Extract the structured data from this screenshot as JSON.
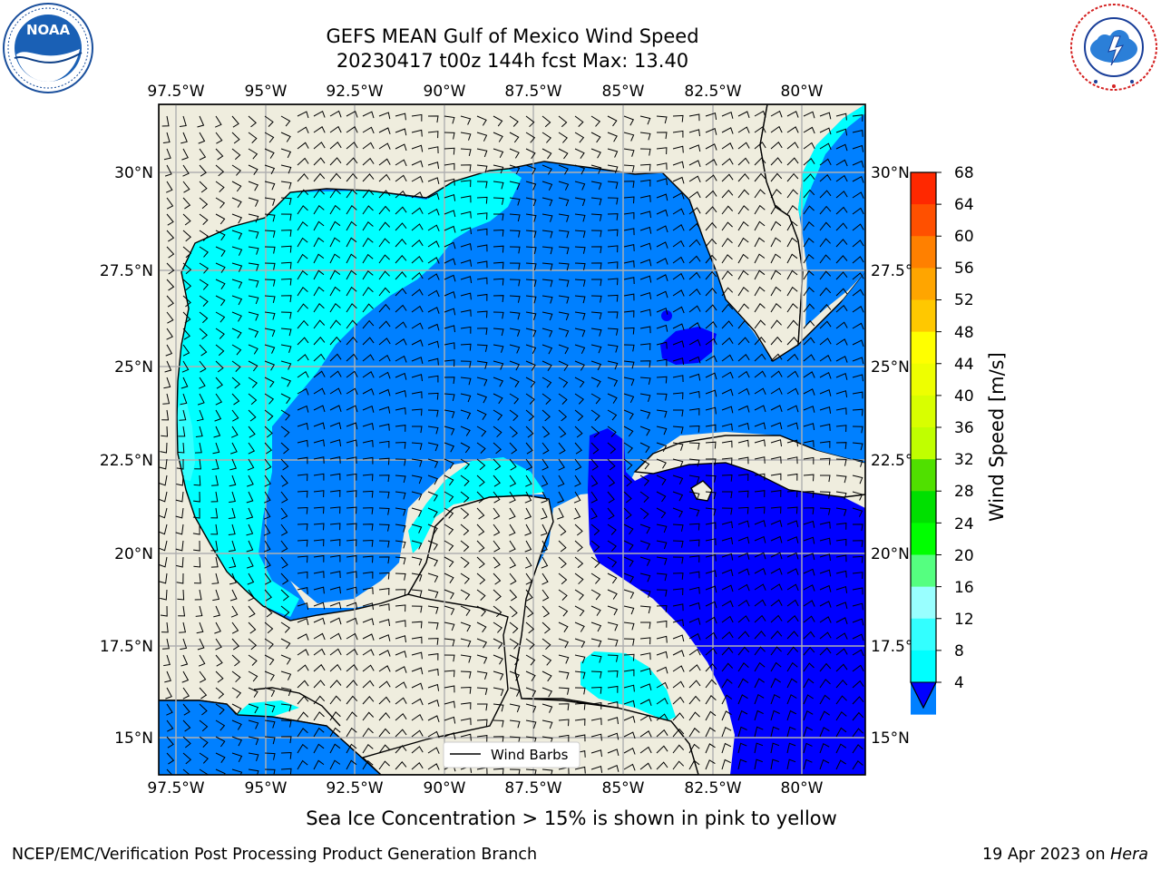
{
  "header": {
    "title_line1": "GEFS MEAN Gulf of Mexico Wind Speed",
    "title_line2": "20230417 t00z 144h fcst   Max: 13.40"
  },
  "logos": {
    "left": {
      "name": "noaa-logo",
      "text": "NOAA",
      "ring_text": "NATIONAL OCEANIC AND ATMOSPHERIC ADMINISTRATION · U.S. DEPARTMENT OF COMMERCE"
    },
    "right": {
      "name": "nws-logo",
      "ring_text": "NATIONAL WEATHER SERVICE"
    }
  },
  "map": {
    "lon_labels": [
      "97.5°W",
      "95°W",
      "92.5°W",
      "90°W",
      "87.5°W",
      "85°W",
      "82.5°W",
      "80°W"
    ],
    "lat_labels": [
      "30°N",
      "27.5°N",
      "25°N",
      "22.5°N",
      "20°N",
      "17.5°N",
      "15°N"
    ],
    "legend": "Wind Barbs",
    "colors": {
      "land": "#efedde",
      "c4": "#0080ff",
      "c0": "#0000ff",
      "c8": "#00ffff",
      "c12": "#33ffff",
      "c16": "#66ffff"
    }
  },
  "colorbar": {
    "label": "Wind Speed [m/s]",
    "ticks": [
      "68",
      "64",
      "60",
      "56",
      "52",
      "48",
      "44",
      "40",
      "36",
      "32",
      "28",
      "24",
      "20",
      "16",
      "12",
      "8",
      "4"
    ],
    "colors": [
      "#ff0000",
      "#ff2800",
      "#ff5000",
      "#ff8000",
      "#ffa500",
      "#ffc800",
      "#ffff00",
      "#eeff00",
      "#d8ff00",
      "#c0ff00",
      "#50e000",
      "#00e000",
      "#00ff00",
      "#55ff80",
      "#99ffff",
      "#33ffff",
      "#00ffff",
      "#0080ff"
    ],
    "under_color": "#0000ff"
  },
  "caption": "Sea Ice Concentration > 15% is shown in pink to yellow",
  "footer": {
    "left": "NCEP/EMC/Verification Post Processing Product Generation Branch",
    "right_prefix": "19 Apr 2023 on ",
    "right_machine": "Hera"
  }
}
